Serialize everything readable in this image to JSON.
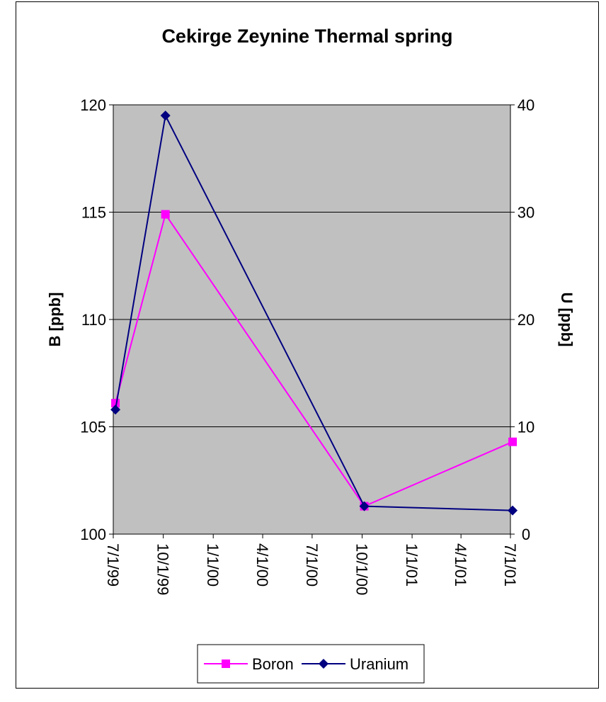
{
  "chart_data": {
    "type": "line",
    "title": "Cekirge Zeynine Thermal spring",
    "ylabel_left": "B [ppb]",
    "ylabel_right": "U [ppb]",
    "xlim": [
      "1999-07-01",
      "2001-07-01"
    ],
    "x_ticks": [
      "1999-07-01",
      "1999-10-01",
      "2000-01-01",
      "2000-04-01",
      "2000-07-01",
      "2000-10-01",
      "2001-01-01",
      "2001-04-01",
      "2001-07-01"
    ],
    "x_tick_labels": [
      "7/1/99",
      "10/1/99",
      "1/1/00",
      "4/1/00",
      "7/1/00",
      "10/1/00",
      "1/1/01",
      "4/1/01",
      "7/1/01"
    ],
    "ylim_left": [
      100,
      120
    ],
    "y_ticks_left": [
      100,
      105,
      110,
      115,
      120
    ],
    "ylim_right": [
      0,
      40
    ],
    "y_ticks_right": [
      0,
      10,
      20,
      30,
      40
    ],
    "grid": "horizontal",
    "plot_background": "#C0C0C0",
    "legend_position": "bottom",
    "series": [
      {
        "name": "Boron",
        "axis": "left",
        "color": "#FF00FF",
        "marker": "square",
        "x": [
          "1999-07-05",
          "1999-10-05",
          "2000-10-05",
          "2001-07-05"
        ],
        "y": [
          106.1,
          114.9,
          101.3,
          104.3
        ]
      },
      {
        "name": "Uranium",
        "axis": "right",
        "color": "#000080",
        "marker": "diamond",
        "x": [
          "1999-07-05",
          "1999-10-05",
          "2000-10-05",
          "2001-07-05"
        ],
        "y": [
          11.6,
          39,
          2.6,
          2.2
        ]
      }
    ]
  }
}
